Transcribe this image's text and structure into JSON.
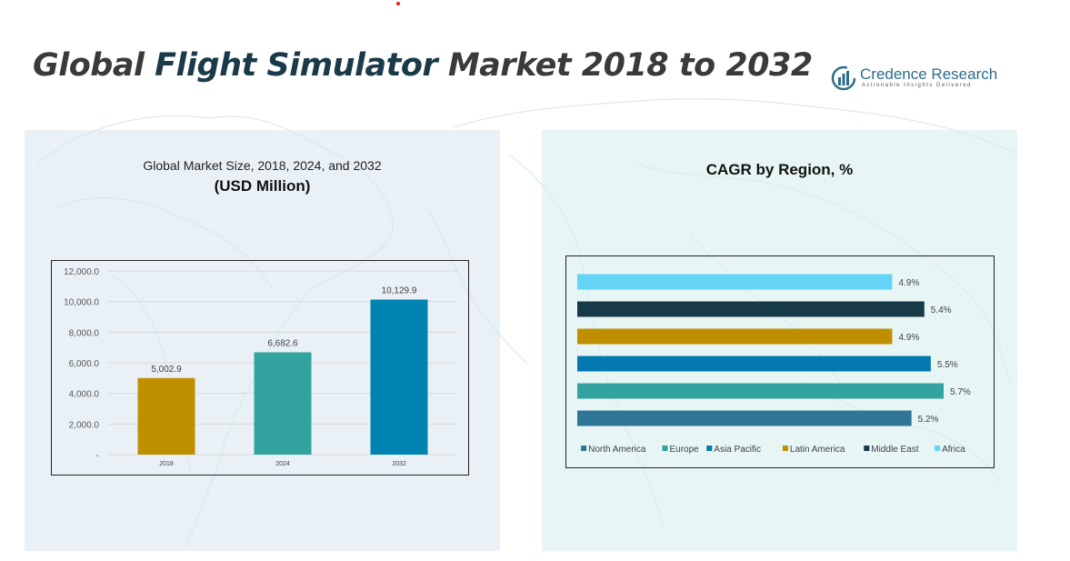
{
  "header": {
    "title_part1": "Global ",
    "title_part2": "Flight Simulator",
    "title_part3": " Market 2018 to 2032"
  },
  "logo": {
    "name": "Credence Research",
    "tagline": "Actionable Insights Delivered",
    "icon": "bar-chart-circle-icon"
  },
  "left_panel": {
    "subtitle": "Global Market Size, 2018, 2024, and 2032",
    "unit": "(USD Million)"
  },
  "right_panel": {
    "title": "CAGR by Region, %"
  },
  "colors": {
    "y2018": "#bf8f00",
    "y2024": "#32a39f",
    "y2032": "#0083b1",
    "north_america": "#2e7596",
    "europe": "#32a39f",
    "asia_pacific": "#0578b0",
    "latin_america": "#bf8f00",
    "middle_east": "#173a48",
    "africa": "#66d4f7"
  },
  "chart_data": [
    {
      "type": "bar",
      "title": "Global Market Size, 2018, 2024, and 2032",
      "ylabel": "(USD Million)",
      "categories": [
        "2018",
        "2024",
        "2032"
      ],
      "values": [
        5002.9,
        6682.6,
        10129.9
      ],
      "value_labels": [
        "5,002.9",
        "6,682.6",
        "10,129.9"
      ],
      "ylim": [
        0,
        12000
      ],
      "yticks": [
        "-",
        "2,000.0",
        "4,000.0",
        "6,000.0",
        "8,000.0",
        "10,000.0",
        "12,000.0"
      ],
      "grid": true
    },
    {
      "type": "bar",
      "orientation": "horizontal",
      "title": "CAGR by Region, %",
      "categories": [
        "Africa",
        "Middle East",
        "Latin America",
        "Asia Pacific",
        "Europe",
        "North America"
      ],
      "values": [
        4.9,
        5.4,
        4.9,
        5.5,
        5.7,
        5.2
      ],
      "value_labels": [
        "4.9%",
        "5.4%",
        "4.9%",
        "5.5%",
        "5.7%",
        "5.2%"
      ],
      "legend": [
        "North America",
        "Europe",
        "Asia Pacific",
        "Latin America",
        "Middle East",
        "Africa"
      ],
      "legend_position": "bottom",
      "grid": false
    }
  ]
}
